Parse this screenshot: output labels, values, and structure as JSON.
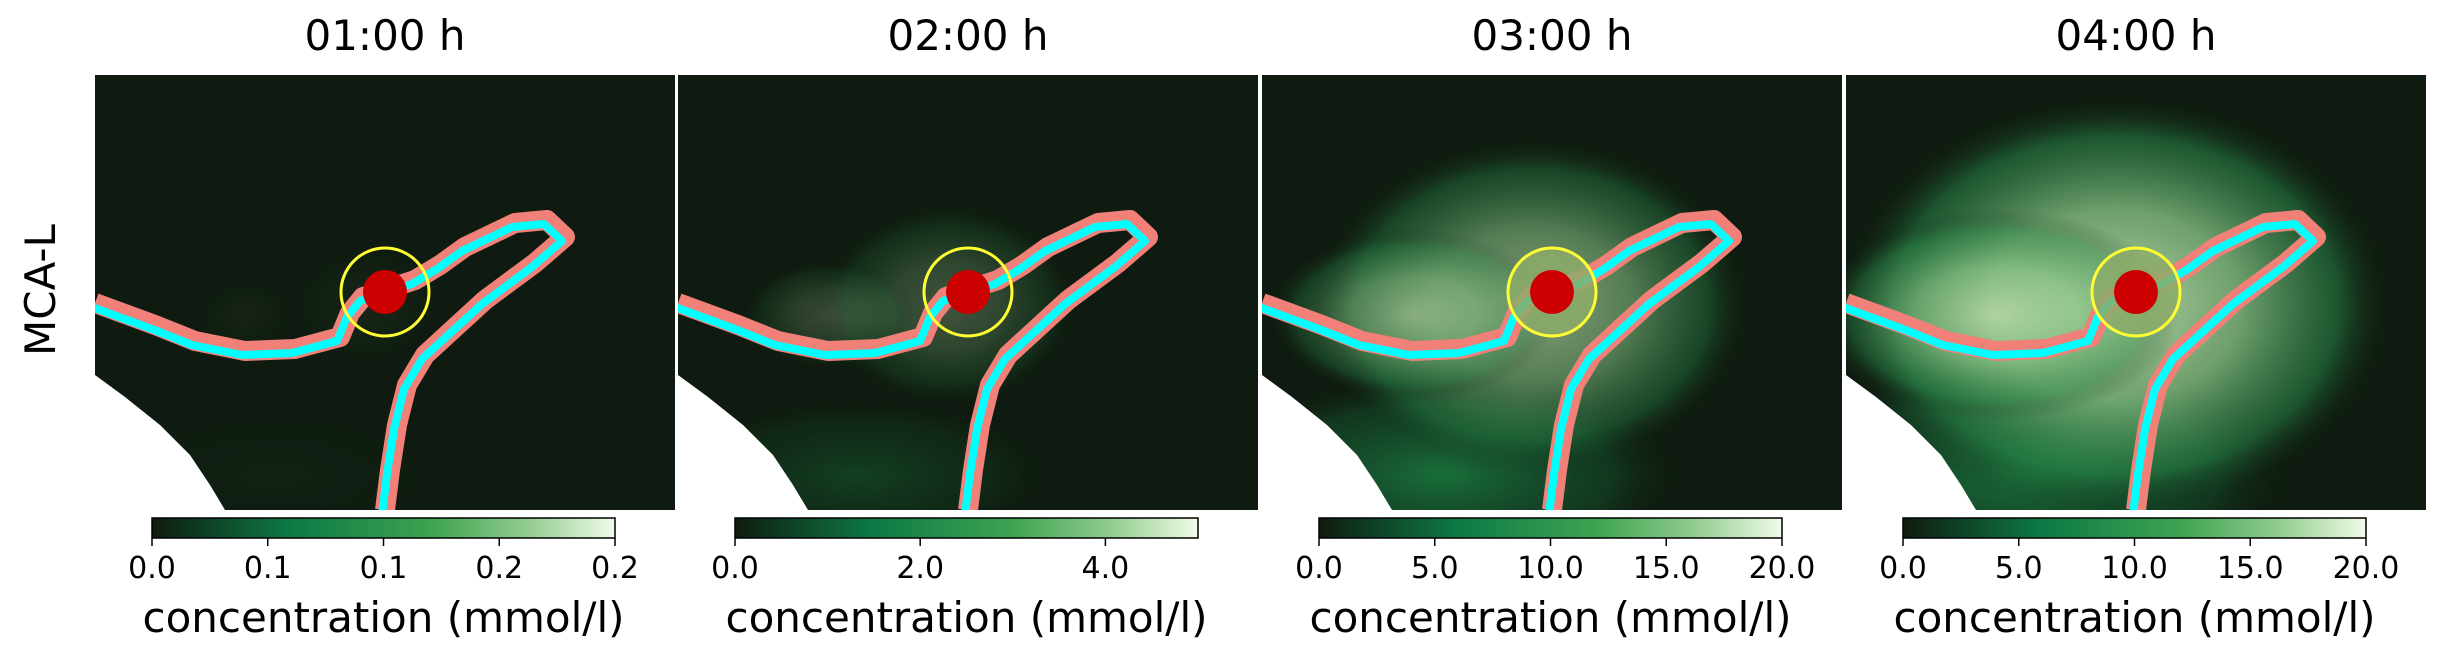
{
  "figure": {
    "row_label": "MCA-L"
  },
  "colors": {
    "background": "#0f1b10",
    "vessel_outer": "#f08078",
    "vessel_inner": "#00ffff",
    "aneurysm_ring": "#ffff33",
    "aneurysm_core": "#cc0000",
    "cmap": [
      "#0f1b10",
      "#0d7a45",
      "#3da351",
      "#8cc98a",
      "#f0fbe8"
    ]
  },
  "chart_data": [
    {
      "type": "heatmap",
      "title": "01:00 h",
      "colorbar": {
        "label": "concentration (mmol/l)",
        "range": [
          0.0,
          0.2
        ],
        "ticks": [
          "0.0",
          "0.1",
          "0.1",
          "0.2",
          "0.2"
        ]
      },
      "plume_level": 0.05
    },
    {
      "type": "heatmap",
      "title": "02:00 h",
      "colorbar": {
        "label": "concentration (mmol/l)",
        "range": [
          0.0,
          5.0
        ],
        "ticks": [
          "0.0",
          "2.0",
          "4.0"
        ]
      },
      "plume_level": 0.3
    },
    {
      "type": "heatmap",
      "title": "03:00 h",
      "colorbar": {
        "label": "concentration (mmol/l)",
        "range": [
          0.0,
          20.0
        ],
        "ticks": [
          "0.0",
          "5.0",
          "10.0",
          "15.0",
          "20.0"
        ]
      },
      "plume_level": 0.7
    },
    {
      "type": "heatmap",
      "title": "04:00 h",
      "colorbar": {
        "label": "concentration (mmol/l)",
        "range": [
          0.0,
          20.0
        ],
        "ticks": [
          "0.0",
          "5.0",
          "10.0",
          "15.0",
          "20.0"
        ]
      },
      "plume_level": 0.95
    }
  ]
}
